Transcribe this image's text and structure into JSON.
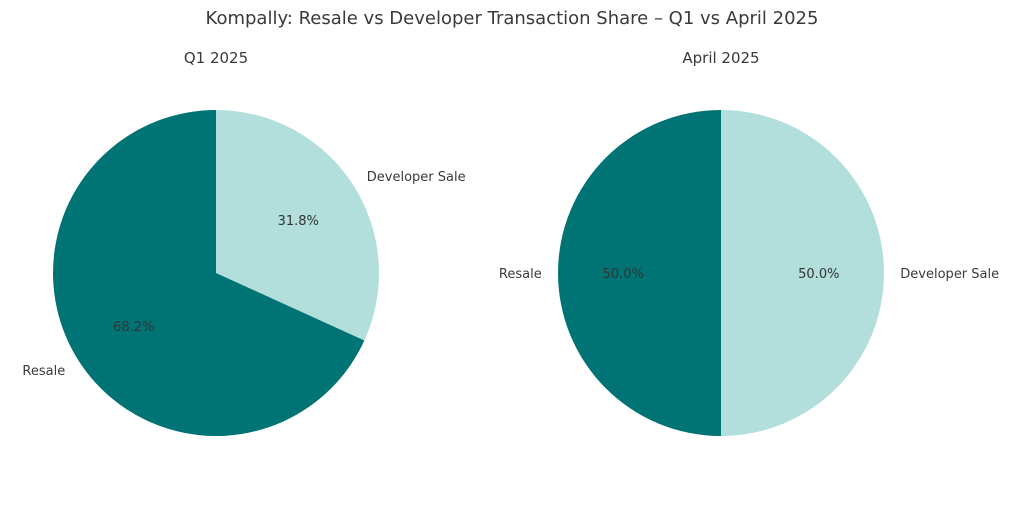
{
  "chart_data": {
    "title": "Kompally: Resale vs Developer Transaction Share – Q1 vs April 2025",
    "charts": [
      {
        "type": "pie",
        "title": "Q1 2025",
        "start_angle_deg": 90,
        "direction": "clockwise",
        "slices": [
          {
            "label": "Developer Sale",
            "value": 31.8,
            "pct_label": "31.8%",
            "color": "#b2dfdb"
          },
          {
            "label": "Resale",
            "value": 68.2,
            "pct_label": "68.2%",
            "color": "#007474"
          }
        ]
      },
      {
        "type": "pie",
        "title": "April 2025",
        "start_angle_deg": 90,
        "direction": "clockwise",
        "slices": [
          {
            "label": "Developer Sale",
            "value": 50.0,
            "pct_label": "50.0%",
            "color": "#b2dfdb"
          },
          {
            "label": "Resale",
            "value": 50.0,
            "pct_label": "50.0%",
            "color": "#007474"
          }
        ]
      }
    ]
  }
}
